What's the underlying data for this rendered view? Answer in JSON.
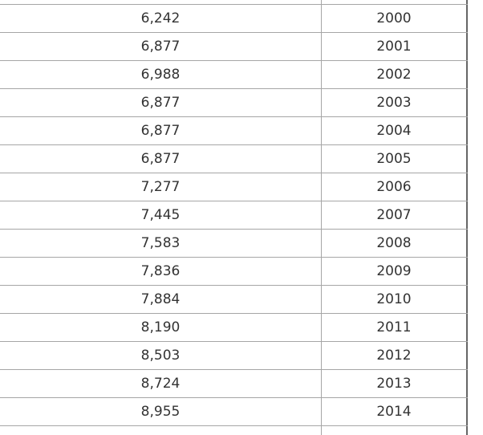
{
  "table": {
    "rows": [
      [
        "6,242",
        "2000"
      ],
      [
        "6,877",
        "2001"
      ],
      [
        "6,988",
        "2002"
      ],
      [
        "6,877",
        "2003"
      ],
      [
        "6,877",
        "2004"
      ],
      [
        "6,877",
        "2005"
      ],
      [
        "7,277",
        "2006"
      ],
      [
        "7,445",
        "2007"
      ],
      [
        "7,583",
        "2008"
      ],
      [
        "7,836",
        "2009"
      ],
      [
        "7,884",
        "2010"
      ],
      [
        "8,190",
        "2011"
      ],
      [
        "8,503",
        "2012"
      ],
      [
        "8,724",
        "2013"
      ],
      [
        "8,955",
        "2014"
      ]
    ]
  }
}
